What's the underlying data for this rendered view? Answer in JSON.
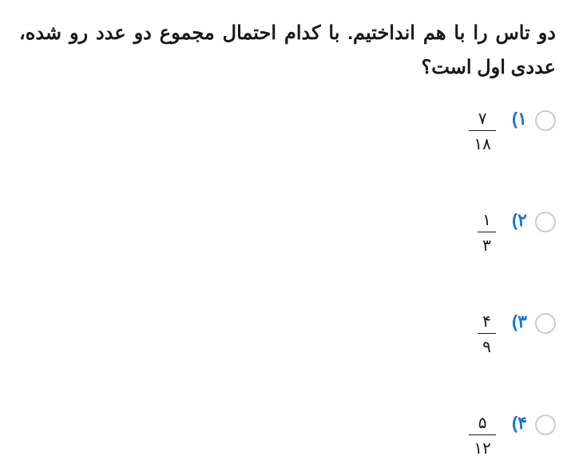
{
  "question": "دو تاس را با هم انداختیم. با کدام احتمال مجموع دو عدد رو شده، عددی اول است؟",
  "options": [
    {
      "number": "۱)",
      "numerator": "۷",
      "denominator": "۱۸"
    },
    {
      "number": "۲)",
      "numerator": "۱",
      "denominator": "۳"
    },
    {
      "number": "۳)",
      "numerator": "۴",
      "denominator": "۹"
    },
    {
      "number": "۴)",
      "numerator": "۵",
      "denominator": "۱۲"
    }
  ],
  "colors": {
    "question_text": "#1a1a1a",
    "option_number": "#1976d2",
    "radio_border": "#cccccc",
    "fraction_text": "#1a1a1a",
    "background": "#ffffff"
  },
  "typography": {
    "question_fontsize": 24,
    "question_fontweight": "bold",
    "option_number_fontsize": 22,
    "fraction_fontsize": 20
  }
}
